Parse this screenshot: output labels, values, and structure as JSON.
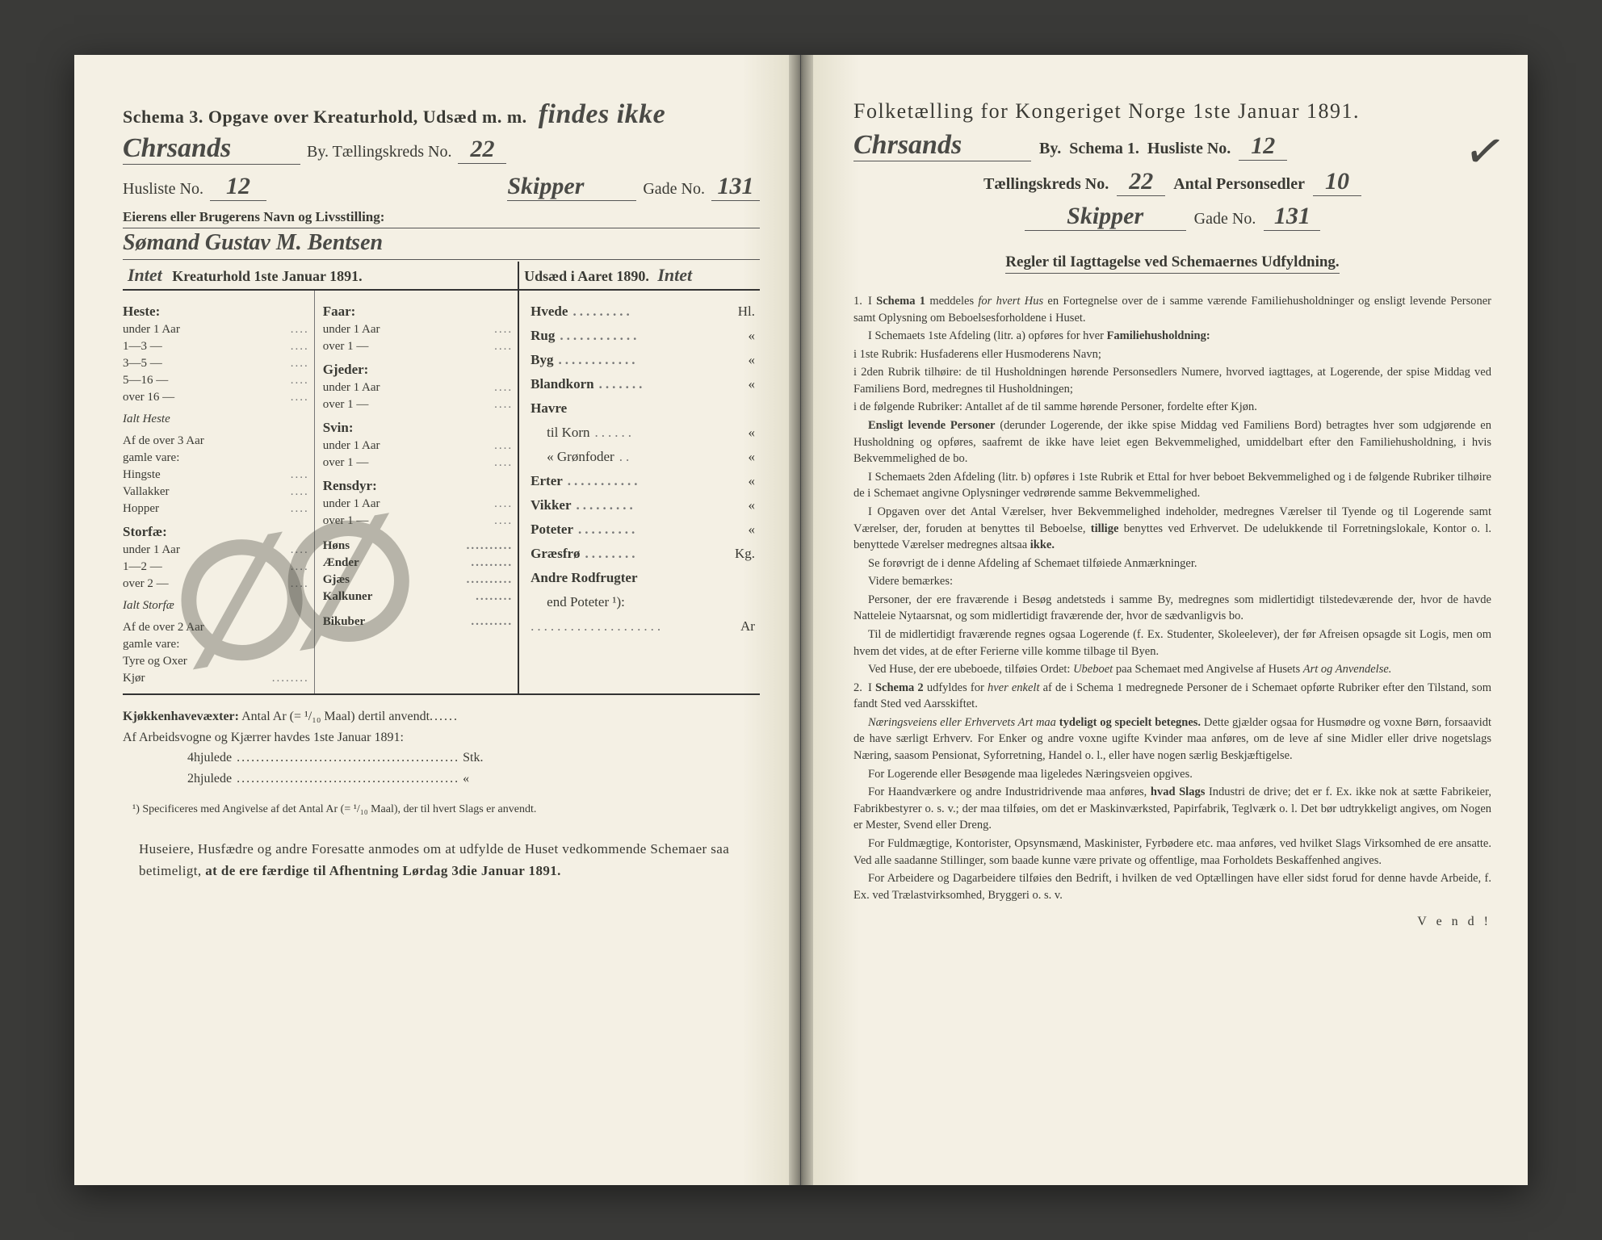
{
  "left": {
    "title_prefix": "Schema 3.",
    "title_rest": "Opgave over Kreaturhold, Udsæd m. m.",
    "title_hw_note": "findes ikke",
    "city_hw": "Chrsands",
    "by_label": "By.  Tællingskreds No.",
    "kreds_hw": "22",
    "husliste_label": "Husliste No.",
    "husliste_hw": "12",
    "gade_hw_prefix": "Skipper",
    "gade_label": "Gade No.",
    "gade_hw_no": "131",
    "owner_label": "Eierens eller Brugerens Navn og Livsstilling:",
    "owner_hw": "Sømand Gustav M. Bentsen",
    "left_col_head": "Kreaturhold 1ste Januar 1891.",
    "right_col_head": "Udsæd i Aaret 1890.",
    "right_col_hw": "Intet",
    "intet_hw": "Intet",
    "colA": {
      "c1": "Heste:",
      "i1": "under 1 Aar",
      "i2": "1—3   —",
      "i3": "3—5   —",
      "i4": "5—16  —",
      "i5": "over 16 —",
      "sum1": "Ialt Heste",
      "note1a": "Af de over 3 Aar",
      "note1b": "gamle vare:",
      "i6": "Hingste",
      "i7": "Vallakker",
      "i8": "Hopper",
      "c2": "Storfæ:",
      "i9": "under 1 Aar",
      "i10": "1—2   —",
      "i11": "over 2  —",
      "sum2": "Ialt Storfæ",
      "note2a": "Af de over 2 Aar",
      "note2b": "gamle vare:",
      "i12": "Tyre og Oxer",
      "i13": "Kjør"
    },
    "colB": {
      "c1": "Faar:",
      "i1": "under 1 Aar",
      "i2": "over 1  —",
      "c2": "Gjeder:",
      "i3": "under 1 Aar",
      "i4": "over 1  —",
      "c3": "Svin:",
      "i5": "under 1 Aar",
      "i6": "over 1  —",
      "c4": "Rensdyr:",
      "i7": "under 1 Aar",
      "i8": "over 1  —",
      "i9": "Høns",
      "i10": "Ænder",
      "i11": "Gjæs",
      "i12": "Kalkuner",
      "i13": "Bikuber"
    },
    "colC": {
      "r1": "Hvede",
      "u1": "Hl.",
      "r2": "Rug",
      "u2": "«",
      "r3": "Byg",
      "u3": "«",
      "r4": "Blandkorn",
      "u4": "«",
      "r5": "Havre",
      "r5a": "til Korn",
      "u5a": "«",
      "r5b": "« Grønfoder",
      "u5b": "«",
      "r6": "Erter",
      "u6": "«",
      "r7": "Vikker",
      "u7": "«",
      "r8": "Poteter",
      "u8": "«",
      "r9": "Græsfrø",
      "u9": "Kg.",
      "r10": "Andre Rodfrugter",
      "r10b": "end Poteter ¹):",
      "r10c": "",
      "u10c": "Ar"
    },
    "below": {
      "l1_b": "Kjøkkenhavevæxter:",
      "l1_r": "Antal Ar (= ¹/₁₀ Maal) dertil anvendt",
      "l2": "Af Arbeidsvogne og Kjærrer havdes 1ste Januar 1891:",
      "l3": "4hjulede",
      "l3u": "Stk.",
      "l4": "2hjulede",
      "l4u": "«"
    },
    "footnote": "¹) Specificeres med Angivelse af det Antal Ar (= ¹/₁₀ Maal), der til hvert Slags er anvendt.",
    "final": "Huseiere, Husfædre og andre Foresatte anmodes om at udfylde de Huset vedkommende Schemaer saa betimeligt, at de ere færdige til Afhentning Lørdag 3die Januar 1891."
  },
  "right": {
    "title": "Folketælling for Kongeriget Norge 1ste Januar 1891.",
    "city_hw": "Chrsands",
    "by": "By.",
    "schema": "Schema 1.",
    "husliste_label": "Husliste No.",
    "husliste_hw": "12",
    "kreds_label": "Tællingskreds No.",
    "kreds_hw": "22",
    "antal_label": "Antal Personsedler",
    "antal_hw": "10",
    "gade_hw_prefix": "Skipper",
    "gade_label": "Gade No.",
    "gade_hw_no": "131",
    "rules_title": "Regler til Iagttagelse ved Schemaernes Udfyldning.",
    "vend": "V e n d !",
    "p1": "I <b>Schema 1</b> meddeles <i>for hvert Hus</i> en Fortegnelse over de i samme værende Familiehusholdninger og ensligt levende Personer samt Oplysning om Beboelsesforholdene i Huset.",
    "p2": "I Schemaets 1ste Afdeling (litr. a) opføres for hver <b>Familiehusholdning:</b>",
    "p3": "i 1ste Rubrik: Husfaderens eller Husmoderens Navn;",
    "p4": "i 2den Rubrik tilhøire: de til Husholdningen hørende Personsedlers Numere, hvorved iagttages, at Logerende, der spise Middag ved Familiens Bord, medregnes til Husholdningen;",
    "p5": "i de følgende Rubriker: Antallet af de til samme hørende Personer, fordelte efter Kjøn.",
    "p6": "<b>Ensligt levende Personer</b> (derunder Logerende, der ikke spise Middag ved Familiens Bord) betragtes hver som udgjørende en Husholdning og opføres, saafremt de ikke have leiet egen Bekvemmelighed, umiddelbart efter den Familiehusholdning, i hvis Bekvemmelighed de bo.",
    "p7": "I Schemaets 2den Afdeling (litr. b) opføres i 1ste Rubrik et Ettal for hver beboet Bekvemmelighed og i de følgende Rubriker tilhøire de i Schemaet angivne Oplysninger vedrørende samme Bekvemmelighed.",
    "p8": "I Opgaven over det Antal Værelser, hver Bekvemmelighed indeholder, medregnes Værelser til Tyende og til Logerende samt Værelser, der, foruden at benyttes til Beboelse, <b>tillige</b> benyttes ved Erhvervet. De udelukkende til Forretningslokale, Kontor o. l. benyttede Værelser medregnes altsaa <b>ikke.</b>",
    "p9": "Se forøvrigt de i denne Afdeling af Schemaet tilføiede Anmærkninger.",
    "p10": "Videre bemærkes:",
    "p11": "Personer, der ere fraværende i Besøg andetsteds i samme By, medregnes som midlertidigt tilstedeværende der, hvor de havde Natteleie Nytaarsnat, og som midlertidigt fraværende der, hvor de sædvanligvis bo.",
    "p12": "Til de midlertidigt fraværende regnes ogsaa Logerende (f. Ex. Studenter, Skoleelever), der før Afreisen opsagde sit Logis, men om hvem det vides, at de efter Ferierne ville komme tilbage til Byen.",
    "p13": "Ved Huse, der ere ubeboede, tilføies Ordet: <i>Ubeboet</i> paa Schemaet med Angivelse af Husets <i>Art og Anvendelse.</i>",
    "p14": "I <b>Schema 2</b> udfyldes for <i>hver enkelt</i> af de i Schema 1 medregnede Personer de i Schemaet opførte Rubriker efter den Tilstand, som fandt Sted ved Aarsskiftet.",
    "p15": "<i>Næringsveiens eller Erhvervets Art maa</i> <b>tydeligt og specielt betegnes.</b> Dette gjælder ogsaa for Husmødre og voxne Børn, forsaavidt de have særligt Erhverv. For Enker og andre voxne ugifte Kvinder maa anføres, om de leve af sine Midler eller drive nogetslags Næring, saasom Pensionat, Syforretning, Handel o. l., eller have nogen særlig Beskjæftigelse.",
    "p16": "For Logerende eller Besøgende maa ligeledes Næringsveien opgives.",
    "p17": "For Haandværkere og andre Industridrivende maa anføres, <b>hvad Slags</b> Industri de drive; det er f. Ex. ikke nok at sætte Fabrikeier, Fabrikbestyrer o. s. v.; der maa tilføies, om det er Maskinværksted, Papirfabrik, Teglværk o. l. Det bør udtrykkeligt angives, om Nogen er Mester, Svend eller Dreng.",
    "p18": "For Fuldmægtige, Kontorister, Opsynsmænd, Maskinister, Fyrbødere etc. maa anføres, ved hvilket Slags Virksomhed de ere ansatte. Ved alle saadanne Stillinger, som baade kunne være private og offentlige, maa Forholdets Beskaffenhed angives.",
    "p19": "For Arbeidere og Dagarbeidere tilføies den Bedrift, i hvilken de ved Optællingen have eller sidst forud for denne havde Arbeide, f. Ex. ved Trælastvirksomhed, Bryggeri o. s. v."
  }
}
